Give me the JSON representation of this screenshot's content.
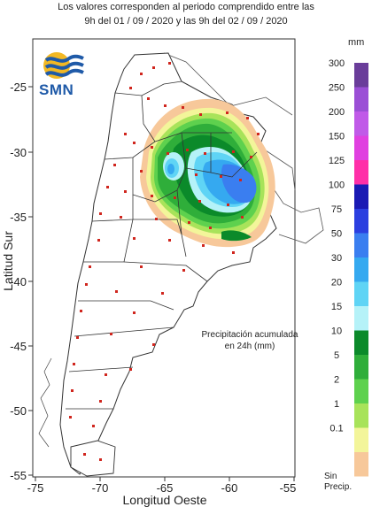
{
  "header": {
    "line1": "Los valores corresponden al periodo comprendido entre las",
    "line2": "9h del 01 / 09 / 2020  y las 9h del 02 / 09 / 2020"
  },
  "logo": {
    "text": "SMN",
    "icon": "smn-wave-sun-icon"
  },
  "axes": {
    "xlabel": "Longitud Oeste",
    "ylabel": "Latitud Sur",
    "xticks": [
      "-75",
      "-70",
      "-65",
      "-60",
      "-55"
    ],
    "yticks": [
      "-25",
      "-30",
      "-35",
      "-40",
      "-45",
      "-50",
      "-55"
    ]
  },
  "annotation": {
    "line1": "Precipitación acumulada",
    "line2": "en 24h (mm)"
  },
  "legend": {
    "unit": "mm",
    "items": [
      {
        "label": "300",
        "color": "#6a3d9a"
      },
      {
        "label": "250",
        "color": "#9b4fd6"
      },
      {
        "label": "200",
        "color": "#c05ae8"
      },
      {
        "label": "150",
        "color": "#e040e0"
      },
      {
        "label": "125",
        "color": "#ff2fa8"
      },
      {
        "label": "100",
        "color": "#1a1ab4"
      },
      {
        "label": "75",
        "color": "#2b3fe0"
      },
      {
        "label": "50",
        "color": "#3a7ef0"
      },
      {
        "label": "30",
        "color": "#35a9f0"
      },
      {
        "label": "20",
        "color": "#5fd4f5"
      },
      {
        "label": "15",
        "color": "#b5f2f8"
      },
      {
        "label": "10",
        "color": "#0b8a2a"
      },
      {
        "label": "5",
        "color": "#2fae3a"
      },
      {
        "label": "2",
        "color": "#5ed14e"
      },
      {
        "label": "1",
        "color": "#a8e35a"
      },
      {
        "label": "0.1",
        "color": "#f3f59a"
      },
      {
        "label": "",
        "color": "#f7c89a"
      }
    ],
    "none_line1": "Sin",
    "none_line2": "Precip."
  }
}
